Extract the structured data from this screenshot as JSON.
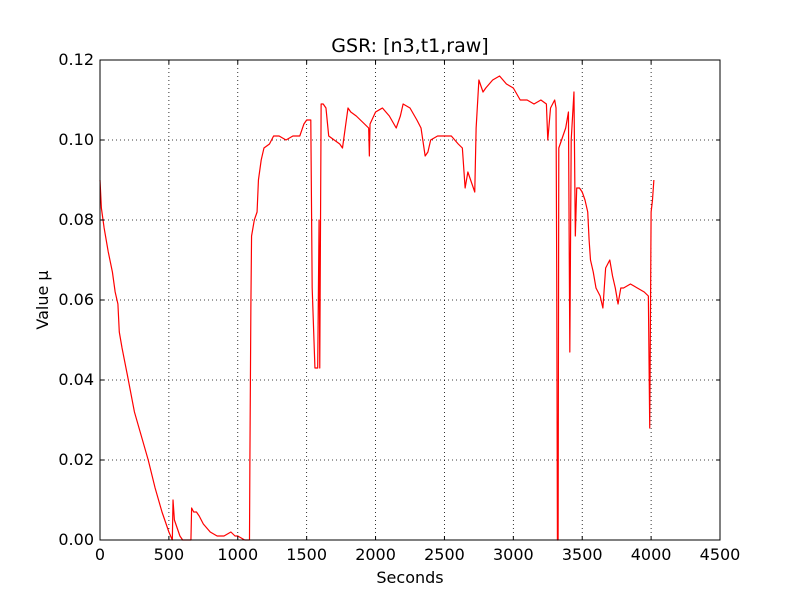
{
  "chart_data": {
    "type": "line",
    "title": "GSR: [n3,t1,raw]",
    "xlabel": "Seconds",
    "ylabel": "Value μ",
    "xlim": [
      0,
      4500
    ],
    "ylim": [
      0,
      0.12
    ],
    "x_ticks": [
      0,
      500,
      1000,
      1500,
      2000,
      2500,
      3000,
      3500,
      4000,
      4500
    ],
    "x_tick_labels": [
      "0",
      "500",
      "1000",
      "1500",
      "2000",
      "2500",
      "3000",
      "3500",
      "4000",
      "4500"
    ],
    "y_ticks": [
      0,
      0.02,
      0.04,
      0.06,
      0.08,
      0.1,
      0.12
    ],
    "y_tick_labels": [
      "0.00",
      "0.02",
      "0.04",
      "0.06",
      "0.08",
      "0.10",
      "0.12"
    ],
    "grid": true,
    "legend": "none",
    "series": [
      {
        "color": "#ff0000",
        "points": [
          [
            0,
            0.09
          ],
          [
            10,
            0.083
          ],
          [
            30,
            0.078
          ],
          [
            60,
            0.072
          ],
          [
            90,
            0.067
          ],
          [
            110,
            0.062
          ],
          [
            130,
            0.059
          ],
          [
            140,
            0.052
          ],
          [
            160,
            0.048
          ],
          [
            200,
            0.041
          ],
          [
            250,
            0.032
          ],
          [
            300,
            0.026
          ],
          [
            350,
            0.02
          ],
          [
            400,
            0.013
          ],
          [
            450,
            0.007
          ],
          [
            500,
            0.002
          ],
          [
            525,
            0.0
          ],
          [
            530,
            0.01
          ],
          [
            540,
            0.005
          ],
          [
            560,
            0.003
          ],
          [
            580,
            0.001
          ],
          [
            600,
            0.0
          ],
          [
            640,
            0.0
          ],
          [
            660,
            0.0
          ],
          [
            665,
            0.008
          ],
          [
            680,
            0.007
          ],
          [
            700,
            0.007
          ],
          [
            720,
            0.006
          ],
          [
            750,
            0.004
          ],
          [
            800,
            0.002
          ],
          [
            850,
            0.001
          ],
          [
            900,
            0.001
          ],
          [
            950,
            0.002
          ],
          [
            980,
            0.001
          ],
          [
            1000,
            0.001
          ],
          [
            1050,
            0.0
          ],
          [
            1085,
            0.0
          ],
          [
            1088,
            0.02
          ],
          [
            1095,
            0.058
          ],
          [
            1100,
            0.076
          ],
          [
            1120,
            0.08
          ],
          [
            1140,
            0.082
          ],
          [
            1150,
            0.09
          ],
          [
            1170,
            0.095
          ],
          [
            1190,
            0.098
          ],
          [
            1230,
            0.099
          ],
          [
            1260,
            0.101
          ],
          [
            1300,
            0.101
          ],
          [
            1350,
            0.1
          ],
          [
            1400,
            0.101
          ],
          [
            1450,
            0.101
          ],
          [
            1480,
            0.104
          ],
          [
            1500,
            0.105
          ],
          [
            1530,
            0.105
          ],
          [
            1540,
            0.063
          ],
          [
            1560,
            0.043
          ],
          [
            1580,
            0.043
          ],
          [
            1590,
            0.08
          ],
          [
            1595,
            0.043
          ],
          [
            1605,
            0.109
          ],
          [
            1620,
            0.109
          ],
          [
            1640,
            0.108
          ],
          [
            1660,
            0.101
          ],
          [
            1700,
            0.1
          ],
          [
            1740,
            0.099
          ],
          [
            1760,
            0.098
          ],
          [
            1800,
            0.108
          ],
          [
            1820,
            0.107
          ],
          [
            1860,
            0.106
          ],
          [
            1920,
            0.104
          ],
          [
            1950,
            0.103
          ],
          [
            1955,
            0.096
          ],
          [
            1960,
            0.104
          ],
          [
            2000,
            0.107
          ],
          [
            2050,
            0.108
          ],
          [
            2100,
            0.106
          ],
          [
            2150,
            0.103
          ],
          [
            2180,
            0.106
          ],
          [
            2200,
            0.109
          ],
          [
            2250,
            0.108
          ],
          [
            2300,
            0.105
          ],
          [
            2330,
            0.103
          ],
          [
            2360,
            0.096
          ],
          [
            2380,
            0.097
          ],
          [
            2400,
            0.1
          ],
          [
            2450,
            0.101
          ],
          [
            2500,
            0.101
          ],
          [
            2550,
            0.101
          ],
          [
            2600,
            0.099
          ],
          [
            2630,
            0.098
          ],
          [
            2650,
            0.088
          ],
          [
            2670,
            0.092
          ],
          [
            2700,
            0.089
          ],
          [
            2720,
            0.087
          ],
          [
            2730,
            0.103
          ],
          [
            2750,
            0.115
          ],
          [
            2780,
            0.112
          ],
          [
            2800,
            0.113
          ],
          [
            2850,
            0.115
          ],
          [
            2900,
            0.116
          ],
          [
            2950,
            0.114
          ],
          [
            3000,
            0.113
          ],
          [
            3050,
            0.11
          ],
          [
            3100,
            0.11
          ],
          [
            3150,
            0.109
          ],
          [
            3200,
            0.11
          ],
          [
            3240,
            0.109
          ],
          [
            3250,
            0.1
          ],
          [
            3270,
            0.108
          ],
          [
            3300,
            0.11
          ],
          [
            3310,
            0.108
          ],
          [
            3315,
            0.066
          ],
          [
            3320,
            0.0
          ],
          [
            3325,
            0.0
          ],
          [
            3330,
            0.098
          ],
          [
            3350,
            0.1
          ],
          [
            3380,
            0.103
          ],
          [
            3400,
            0.107
          ],
          [
            3410,
            0.047
          ],
          [
            3420,
            0.1
          ],
          [
            3440,
            0.112
          ],
          [
            3450,
            0.076
          ],
          [
            3460,
            0.088
          ],
          [
            3480,
            0.088
          ],
          [
            3500,
            0.087
          ],
          [
            3520,
            0.085
          ],
          [
            3540,
            0.082
          ],
          [
            3550,
            0.075
          ],
          [
            3560,
            0.07
          ],
          [
            3580,
            0.067
          ],
          [
            3600,
            0.063
          ],
          [
            3630,
            0.061
          ],
          [
            3650,
            0.058
          ],
          [
            3670,
            0.068
          ],
          [
            3700,
            0.07
          ],
          [
            3720,
            0.066
          ],
          [
            3740,
            0.063
          ],
          [
            3760,
            0.059
          ],
          [
            3780,
            0.063
          ],
          [
            3800,
            0.063
          ],
          [
            3850,
            0.064
          ],
          [
            3900,
            0.063
          ],
          [
            3950,
            0.062
          ],
          [
            3980,
            0.061
          ],
          [
            3990,
            0.028
          ],
          [
            4000,
            0.082
          ],
          [
            4010,
            0.085
          ],
          [
            4020,
            0.09
          ]
        ]
      }
    ]
  }
}
